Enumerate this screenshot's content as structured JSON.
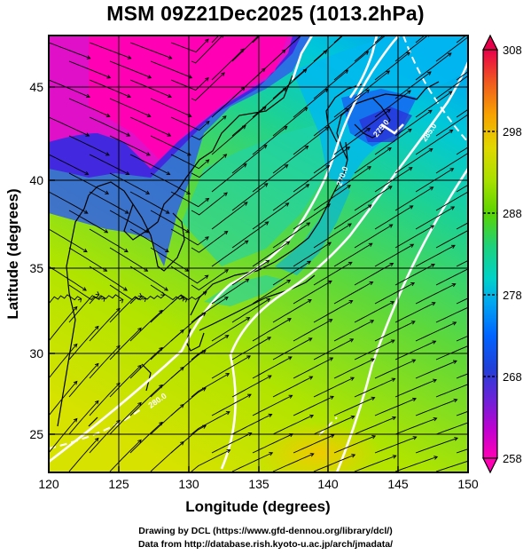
{
  "title": "MSM 09Z21Dec2025 (1013.2hPa)",
  "axes": {
    "xlabel": "Longitude (degrees)",
    "ylabel": "Latitude (degrees)",
    "x_ticks": [
      "120",
      "125",
      "130",
      "135",
      "140",
      "145",
      "150"
    ],
    "y_ticks": [
      "25",
      "30",
      "35",
      "40",
      "45"
    ]
  },
  "colorbar": {
    "ticks": [
      "308",
      "298",
      "288",
      "278",
      "268",
      "258"
    ],
    "colors": [
      "#e8004a",
      "#f05a1e",
      "#f7a300",
      "#e0d800",
      "#a8e000",
      "#5ad400",
      "#1ed27a",
      "#00d2c8",
      "#00a6f0",
      "#0064ff",
      "#2040d8",
      "#7020d8",
      "#c000d0",
      "#ff00b4"
    ]
  },
  "contour_labels": [
    "270.0",
    "275.0",
    "280.0",
    "285.0"
  ],
  "credits": {
    "line1": "Drawing by DCL (https://www.gfd-dennou.org/library/dcl/)",
    "line2": "Data from http://database.rish.kyoto-u.ac.jp/arch/jmadata/"
  }
}
